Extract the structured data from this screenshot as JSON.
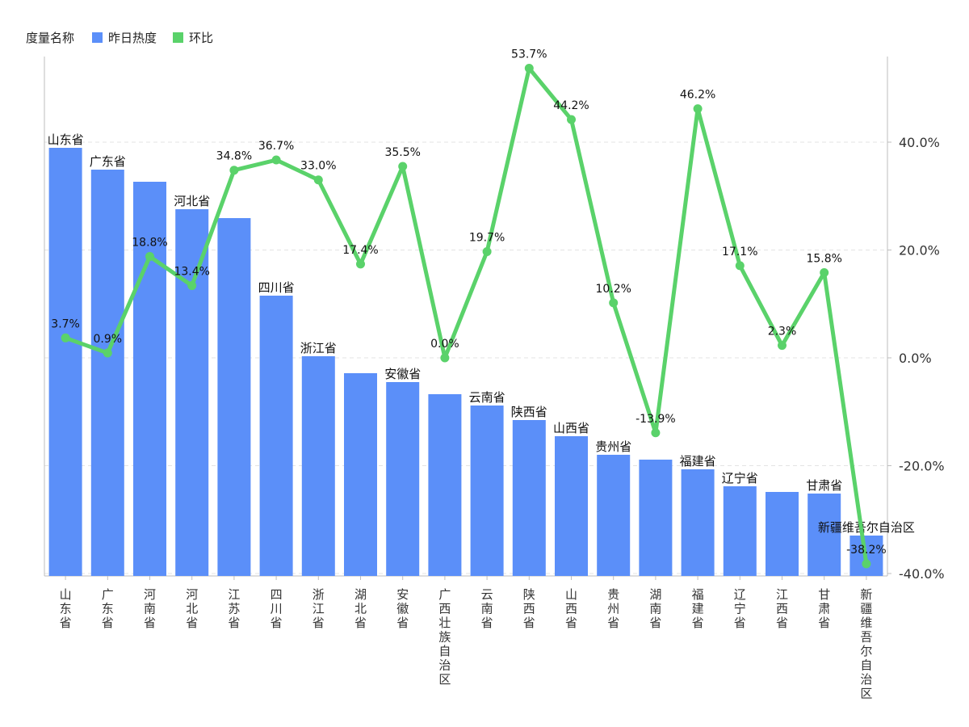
{
  "chart_data": {
    "type": "bar+line",
    "title": "",
    "legend": {
      "title": "度量名称",
      "placement": "top-left",
      "items": [
        {
          "name": "昨日热度",
          "color": "#5b8ff9"
        },
        {
          "name": "环比",
          "color": "#5ad26a"
        }
      ]
    },
    "categories": [
      "山东省",
      "广东省",
      "河南省",
      "河北省",
      "江苏省",
      "四川省",
      "浙江省",
      "湖北省",
      "安徽省",
      "广西壮族自治区",
      "云南省",
      "陕西省",
      "山西省",
      "贵州省",
      "湖南省",
      "福建省",
      "辽宁省",
      "江西省",
      "甘肃省",
      "新疆维吾尔自治区"
    ],
    "bar_labels": [
      "山东省",
      "广东省",
      "",
      "河北省",
      "",
      "四川省",
      "浙江省",
      "",
      "安徽省",
      "",
      "云南省",
      "陕西省",
      "山西省",
      "贵州省",
      "",
      "福建省",
      "辽宁省",
      "",
      "甘肃省",
      "新疆维吾尔自治区"
    ],
    "series": [
      {
        "name": "昨日热度",
        "type": "bar",
        "axis": "left",
        "color": "#5b8ff9",
        "values": [
          530,
          503,
          488,
          454,
          443,
          347,
          272,
          251,
          240,
          225,
          211,
          193,
          173,
          150,
          144,
          132,
          111,
          104,
          102,
          50
        ]
      },
      {
        "name": "环比",
        "type": "line",
        "axis": "right",
        "color": "#5ad26a",
        "values": [
          3.7,
          0.9,
          18.8,
          13.4,
          34.8,
          36.7,
          33.0,
          17.4,
          35.5,
          0.0,
          19.7,
          53.7,
          44.2,
          10.2,
          -13.9,
          46.2,
          17.1,
          2.3,
          15.8,
          -38.2
        ],
        "labels": [
          "3.7%",
          "0.9%",
          "18.8%",
          "13.4%",
          "34.8%",
          "36.7%",
          "33.0%",
          "17.4%",
          "35.5%",
          "0.0%",
          "19.7%",
          "53.7%",
          "44.2%",
          "10.2%",
          "-13.9%",
          "46.2%",
          "17.1%",
          "2.3%",
          "15.8%",
          "-38.2%"
        ]
      }
    ],
    "left_axis": {
      "range": [
        0,
        600
      ],
      "tick_labels_shown": false
    },
    "right_axis": {
      "range": [
        -40,
        56
      ],
      "ticks": [
        -40,
        -20,
        0,
        20,
        40
      ],
      "tick_labels": [
        "-40.0%",
        "-20.0%",
        "0.0%",
        "20.0%",
        "40.0%"
      ]
    },
    "grid": {
      "horizontal": true,
      "style": "dashed"
    }
  }
}
